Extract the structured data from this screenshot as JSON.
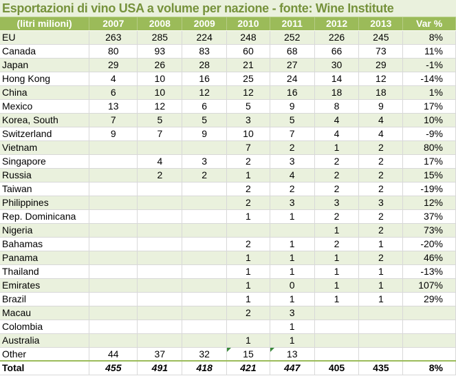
{
  "title": "Esportazioni di vino USA a volume per nazione - fonte: Wine Institute",
  "headers": [
    "(litri milioni)",
    "2007",
    "2008",
    "2009",
    "2010",
    "2011",
    "2012",
    "2013",
    "Var %"
  ],
  "rows": [
    [
      "EU",
      "263",
      "285",
      "224",
      "248",
      "252",
      "226",
      "245",
      "8%"
    ],
    [
      "Canada",
      "80",
      "93",
      "83",
      "60",
      "68",
      "66",
      "73",
      "11%"
    ],
    [
      "Japan",
      "29",
      "26",
      "28",
      "21",
      "27",
      "30",
      "29",
      "-1%"
    ],
    [
      "Hong Kong",
      "4",
      "10",
      "16",
      "25",
      "24",
      "14",
      "12",
      "-14%"
    ],
    [
      "China",
      "6",
      "10",
      "12",
      "12",
      "16",
      "18",
      "18",
      "1%"
    ],
    [
      "Mexico",
      "13",
      "12",
      "6",
      "5",
      "9",
      "8",
      "9",
      "17%"
    ],
    [
      "Korea, South",
      "7",
      "5",
      "5",
      "3",
      "5",
      "4",
      "4",
      "10%"
    ],
    [
      "Switzerland",
      "9",
      "7",
      "9",
      "10",
      "7",
      "4",
      "4",
      "-9%"
    ],
    [
      "Vietnam",
      "",
      "",
      "",
      "7",
      "2",
      "1",
      "2",
      "80%"
    ],
    [
      "Singapore",
      "",
      "4",
      "3",
      "2",
      "3",
      "2",
      "2",
      "17%"
    ],
    [
      "Russia",
      "",
      "2",
      "2",
      "1",
      "4",
      "2",
      "2",
      "15%"
    ],
    [
      "Taiwan",
      "",
      "",
      "",
      "2",
      "2",
      "2",
      "2",
      "-19%"
    ],
    [
      "Philippines",
      "",
      "",
      "",
      "2",
      "3",
      "3",
      "3",
      "12%"
    ],
    [
      "Rep. Dominicana",
      "",
      "",
      "",
      "1",
      "1",
      "2",
      "2",
      "37%"
    ],
    [
      "Nigeria",
      "",
      "",
      "",
      "",
      "",
      "1",
      "2",
      "73%"
    ],
    [
      "Bahamas",
      "",
      "",
      "",
      "2",
      "1",
      "2",
      "1",
      "-20%"
    ],
    [
      "Panama",
      "",
      "",
      "",
      "1",
      "1",
      "1",
      "2",
      "46%"
    ],
    [
      "Thailand",
      "",
      "",
      "",
      "1",
      "1",
      "1",
      "1",
      "-13%"
    ],
    [
      "Emirates",
      "",
      "",
      "",
      "1",
      "0",
      "1",
      "1",
      "107%"
    ],
    [
      "Brazil",
      "",
      "",
      "",
      "1",
      "1",
      "1",
      "1",
      "29%"
    ],
    [
      "Macau",
      "",
      "",
      "",
      "2",
      "3",
      "",
      "",
      ""
    ],
    [
      "Colombia",
      "",
      "",
      "",
      "",
      "1",
      "",
      "",
      ""
    ],
    [
      "Australia",
      "",
      "",
      "",
      "1",
      "1",
      "",
      "",
      ""
    ],
    [
      "Other",
      "44",
      "37",
      "32",
      "15",
      "13",
      "",
      "",
      ""
    ]
  ],
  "total": [
    "Total",
    "455",
    "491",
    "418",
    "421",
    "447",
    "405",
    "435",
    "8%"
  ],
  "colors": {
    "header_bg": "#9bbb59",
    "title_text": "#76923c",
    "band": "#eaf1dd"
  }
}
